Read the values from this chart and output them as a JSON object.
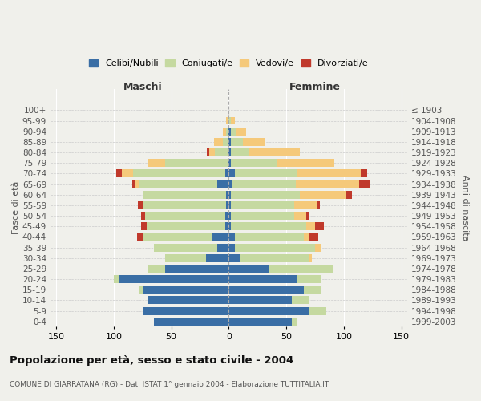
{
  "age_groups": [
    "0-4",
    "5-9",
    "10-14",
    "15-19",
    "20-24",
    "25-29",
    "30-34",
    "35-39",
    "40-44",
    "45-49",
    "50-54",
    "55-59",
    "60-64",
    "65-69",
    "70-74",
    "75-79",
    "80-84",
    "85-89",
    "90-94",
    "95-99",
    "100+"
  ],
  "birth_years": [
    "1999-2003",
    "1994-1998",
    "1989-1993",
    "1984-1988",
    "1979-1983",
    "1974-1978",
    "1969-1973",
    "1964-1968",
    "1959-1963",
    "1954-1958",
    "1949-1953",
    "1944-1948",
    "1939-1943",
    "1934-1938",
    "1929-1933",
    "1924-1928",
    "1919-1923",
    "1914-1918",
    "1909-1913",
    "1904-1908",
    "≤ 1903"
  ],
  "male": {
    "celibi": [
      65,
      75,
      70,
      75,
      95,
      55,
      20,
      10,
      15,
      3,
      3,
      2,
      2,
      10,
      3,
      0,
      0,
      0,
      0,
      0,
      0
    ],
    "coniugati": [
      0,
      0,
      0,
      3,
      5,
      15,
      35,
      55,
      60,
      68,
      70,
      72,
      72,
      68,
      80,
      55,
      12,
      5,
      2,
      1,
      0
    ],
    "vedovi": [
      0,
      0,
      0,
      0,
      0,
      0,
      0,
      0,
      0,
      0,
      0,
      0,
      0,
      3,
      10,
      15,
      5,
      8,
      3,
      1,
      0
    ],
    "divorziati": [
      0,
      0,
      0,
      0,
      0,
      0,
      0,
      0,
      5,
      5,
      3,
      5,
      0,
      3,
      5,
      0,
      2,
      0,
      0,
      0,
      0
    ]
  },
  "female": {
    "nubili": [
      55,
      70,
      55,
      65,
      60,
      35,
      10,
      5,
      5,
      2,
      2,
      2,
      2,
      3,
      5,
      2,
      2,
      2,
      2,
      0,
      0
    ],
    "coniugate": [
      5,
      15,
      15,
      15,
      20,
      55,
      60,
      70,
      60,
      65,
      55,
      55,
      60,
      55,
      55,
      40,
      15,
      10,
      5,
      2,
      0
    ],
    "vedove": [
      0,
      0,
      0,
      0,
      0,
      0,
      2,
      5,
      5,
      8,
      10,
      20,
      40,
      55,
      55,
      50,
      45,
      20,
      8,
      3,
      0
    ],
    "divorziate": [
      0,
      0,
      0,
      0,
      0,
      0,
      0,
      0,
      8,
      8,
      3,
      2,
      5,
      10,
      5,
      0,
      0,
      0,
      0,
      0,
      0
    ]
  },
  "colors": {
    "celibi": "#3a6ea5",
    "coniugati": "#c5d9a0",
    "vedovi": "#f5c97a",
    "divorziati": "#c0392b"
  },
  "title": "Popolazione per età, sesso e stato civile - 2004",
  "subtitle": "COMUNE DI GIARRATANA (RG) - Dati ISTAT 1° gennaio 2004 - Elaborazione TUTTITALIA.IT",
  "ylabel_left": "Fasce di età",
  "ylabel_right": "Anni di nascita",
  "legend_labels": [
    "Celibi/Nubili",
    "Coniugati/e",
    "Vedovi/e",
    "Divorziati/e"
  ],
  "xlim": 155,
  "background_color": "#f0f0eb",
  "plot_bg": "#f0f0eb"
}
